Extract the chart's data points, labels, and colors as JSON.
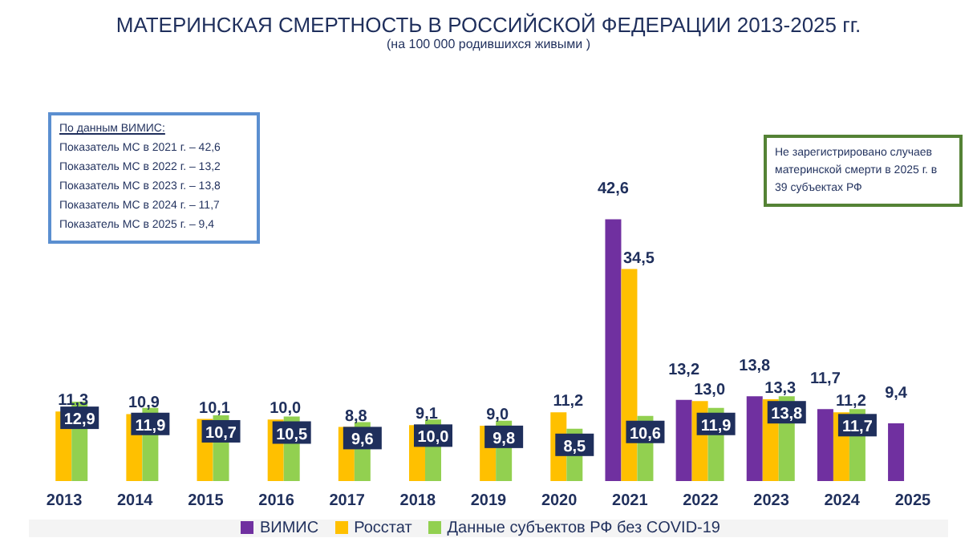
{
  "chart_data": {
    "type": "bar",
    "title": "МАТЕРИНСКАЯ СМЕРТНОСТЬ В РОССИЙСКОЙ ФЕДЕРАЦИИ 2013-2025 гг.",
    "subtitle": "(на 100 000 родившихся живыми )",
    "categories": [
      "2013",
      "2014",
      "2015",
      "2016",
      "2017",
      "2018",
      "2019",
      "2020",
      "2021",
      "2022",
      "2023",
      "2024",
      "2025"
    ],
    "series": [
      {
        "name": "ВИМИС",
        "color": "#7030a0",
        "values": [
          null,
          null,
          null,
          null,
          null,
          null,
          null,
          null,
          42.6,
          13.2,
          13.8,
          11.7,
          9.4
        ],
        "value_labels": [
          null,
          null,
          null,
          null,
          null,
          null,
          null,
          null,
          "42,6",
          "13,2",
          "13,8",
          "11,7",
          "9,4"
        ]
      },
      {
        "name": "Росстат",
        "color": "#ffc000",
        "values": [
          11.3,
          10.9,
          10.1,
          10.0,
          8.8,
          9.1,
          9.0,
          11.2,
          34.5,
          13.0,
          13.3,
          11.2,
          null
        ],
        "value_labels": [
          "11,3",
          "10,9",
          "10,1",
          "10,0",
          "8,8",
          "9,1",
          "9,0",
          "11,2",
          "34,5",
          "13,0",
          "13,3",
          "11,2",
          null
        ]
      },
      {
        "name": "Данные субъектов РФ без COVID-19",
        "color": "#92d050",
        "values": [
          12.9,
          11.9,
          10.7,
          10.5,
          9.6,
          10.0,
          9.8,
          8.5,
          10.6,
          11.9,
          13.8,
          11.7,
          null
        ],
        "value_labels": [
          "12,9",
          "11,9",
          "10,7",
          "10,5",
          "9,6",
          "10,0",
          "9,8",
          "8,5",
          "10,6",
          "11,9",
          "13,8",
          "11,7",
          null
        ]
      }
    ],
    "annotations": [
      "По данным ВИМИС:",
      "Показатель МС в 2021 г. – 42,6",
      "Показатель МС в 2022 г. – 13,2",
      "Показатель МС в 2023 г. – 13,8",
      "Показатель МС в 2024 г. – 11,7",
      "Показатель МС в 2025 г. – 9,4",
      "Не зарегистрировано случаев материнской смерти в 2025 г. в 39 субъектах РФ"
    ],
    "legend": "bottom",
    "grid": false
  }
}
